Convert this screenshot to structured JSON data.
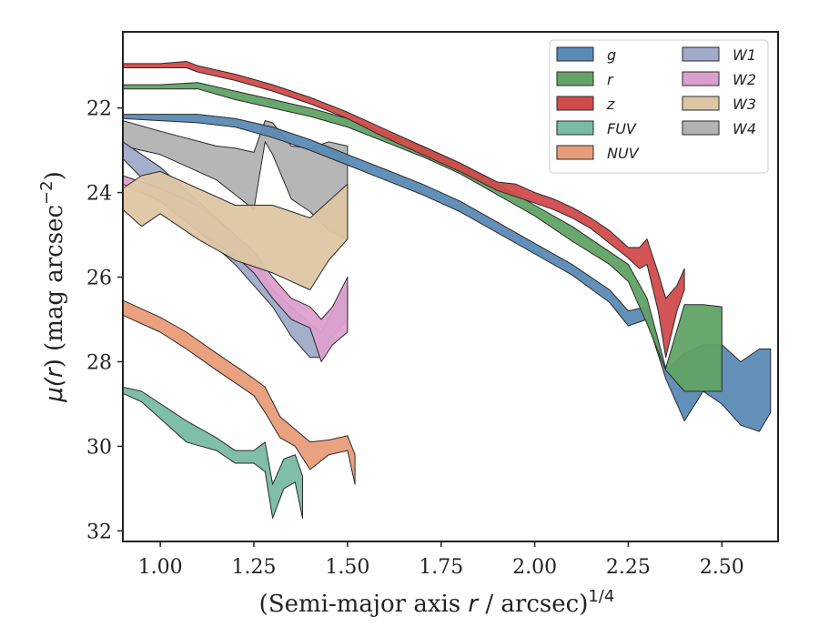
{
  "chart_data": {
    "type": "area",
    "xlabel_main": "(Semi-major axis ",
    "xlabel_var": "r",
    "xlabel_unit": " / arcsec)",
    "xlabel_exp": "1/4",
    "ylabel_main": "μ(",
    "ylabel_var": "r",
    "ylabel_unit": ") (mag arcsec",
    "ylabel_exp": "−2",
    "ylabel_close": ")",
    "xlim": [
      0.9,
      2.65
    ],
    "ylim": [
      32.25,
      20.2
    ],
    "y_inverted": true,
    "xticks": [
      1.0,
      1.25,
      1.5,
      1.75,
      2.0,
      2.25,
      2.5
    ],
    "xtick_labels": [
      "1.00",
      "1.25",
      "1.50",
      "1.75",
      "2.00",
      "2.25",
      "2.50"
    ],
    "yticks": [
      22,
      24,
      26,
      28,
      30,
      32
    ],
    "ytick_labels": [
      "22",
      "24",
      "26",
      "28",
      "30",
      "32"
    ],
    "grid": false,
    "legend_placement": "top-right",
    "series": [
      {
        "name": "W4",
        "color": "#b2b2b2",
        "x": [
          0.9,
          1.0,
          1.15,
          1.2,
          1.25,
          1.28,
          1.3,
          1.35,
          1.4,
          1.45,
          1.5
        ],
        "lo": [
          22.3,
          22.55,
          22.9,
          22.95,
          23.05,
          22.3,
          22.35,
          22.9,
          22.95,
          22.8,
          22.9
        ],
        "hi": [
          22.9,
          23.1,
          23.7,
          24.05,
          24.4,
          22.8,
          23.1,
          24.15,
          24.45,
          24.9,
          25.1
        ]
      },
      {
        "name": "W1",
        "color": "#9fabc9",
        "x": [
          0.9,
          1.0,
          1.1,
          1.2,
          1.25,
          1.3,
          1.35,
          1.4,
          1.43,
          1.46,
          1.5
        ],
        "lo": [
          22.8,
          23.4,
          24.2,
          25.0,
          25.6,
          26.3,
          26.7,
          27.1,
          27.3,
          26.8,
          26.2
        ],
        "hi": [
          23.2,
          24.1,
          24.9,
          25.7,
          26.2,
          26.7,
          27.4,
          27.9,
          27.9,
          27.4,
          27.0
        ]
      },
      {
        "name": "W2",
        "color": "#dba0ce",
        "x": [
          0.9,
          1.0,
          1.1,
          1.2,
          1.25,
          1.3,
          1.35,
          1.4,
          1.43,
          1.46,
          1.5
        ],
        "lo": [
          23.6,
          23.9,
          24.3,
          25.0,
          25.4,
          26.0,
          26.5,
          26.7,
          27.0,
          26.7,
          26.0
        ],
        "hi": [
          23.8,
          24.2,
          24.9,
          25.5,
          25.9,
          26.5,
          27.0,
          27.2,
          28.0,
          27.6,
          27.3
        ]
      },
      {
        "name": "W3",
        "color": "#ddc6a3",
        "x": [
          0.9,
          0.95,
          1.0,
          1.1,
          1.2,
          1.3,
          1.4,
          1.45,
          1.5
        ],
        "lo": [
          23.9,
          23.6,
          23.5,
          23.9,
          24.3,
          24.3,
          24.6,
          24.2,
          23.8
        ],
        "hi": [
          24.4,
          24.8,
          24.5,
          25.1,
          25.6,
          25.9,
          26.3,
          25.6,
          25.1
        ]
      },
      {
        "name": "NUV",
        "color": "#e89c79",
        "x": [
          0.9,
          1.0,
          1.07,
          1.15,
          1.2,
          1.25,
          1.28,
          1.32,
          1.36,
          1.4,
          1.45,
          1.5,
          1.52
        ],
        "lo": [
          26.55,
          26.95,
          27.3,
          27.8,
          28.1,
          28.4,
          28.6,
          29.3,
          29.6,
          29.9,
          29.85,
          29.75,
          30.2
        ],
        "hi": [
          26.9,
          27.3,
          27.7,
          28.2,
          28.5,
          28.8,
          29.2,
          29.8,
          30.0,
          30.55,
          30.2,
          30.1,
          30.9
        ]
      },
      {
        "name": "FUV",
        "color": "#78bba3",
        "x": [
          0.9,
          0.95,
          1.07,
          1.15,
          1.2,
          1.25,
          1.28,
          1.3,
          1.33,
          1.36,
          1.38
        ],
        "lo": [
          28.6,
          28.7,
          29.4,
          29.8,
          30.1,
          30.1,
          29.9,
          30.9,
          30.3,
          30.2,
          30.7
        ],
        "hi": [
          28.75,
          28.95,
          29.9,
          30.1,
          30.4,
          30.4,
          30.6,
          31.7,
          31.0,
          30.85,
          31.7
        ]
      },
      {
        "name": "g",
        "color": "#5b8ab5",
        "x": [
          0.9,
          1.0,
          1.1,
          1.2,
          1.3,
          1.4,
          1.5,
          1.6,
          1.7,
          1.8,
          1.9,
          2.0,
          2.1,
          2.2,
          2.25,
          2.3,
          2.35,
          2.4,
          2.45,
          2.5,
          2.55,
          2.6,
          2.63
        ],
        "lo": [
          22.15,
          22.15,
          22.15,
          22.25,
          22.45,
          22.75,
          23.1,
          23.45,
          23.8,
          24.2,
          24.7,
          25.2,
          25.7,
          26.3,
          26.8,
          26.7,
          28.2,
          27.8,
          27.6,
          27.6,
          28.0,
          27.7,
          27.7
        ],
        "hi": [
          22.25,
          22.3,
          22.35,
          22.45,
          22.7,
          23.0,
          23.35,
          23.7,
          24.05,
          24.45,
          24.95,
          25.45,
          25.95,
          26.6,
          27.15,
          27.0,
          28.4,
          29.4,
          28.7,
          29.0,
          29.5,
          29.65,
          29.2
        ]
      },
      {
        "name": "r",
        "color": "#61a365",
        "x": [
          0.9,
          1.0,
          1.1,
          1.2,
          1.3,
          1.4,
          1.5,
          1.6,
          1.7,
          1.8,
          1.9,
          2.0,
          2.1,
          2.2,
          2.25,
          2.3,
          2.35,
          2.4,
          2.45,
          2.5
        ],
        "lo": [
          21.45,
          21.45,
          21.4,
          21.6,
          21.8,
          22.0,
          22.25,
          22.6,
          22.9,
          23.3,
          23.8,
          24.3,
          24.8,
          25.4,
          25.7,
          26.5,
          28.15,
          26.65,
          26.65,
          26.7
        ],
        "hi": [
          21.55,
          21.55,
          21.55,
          21.8,
          22.0,
          22.2,
          22.45,
          22.8,
          23.15,
          23.55,
          24.05,
          24.55,
          25.15,
          25.7,
          26.1,
          27.1,
          28.2,
          28.7,
          28.7,
          28.7
        ]
      },
      {
        "name": "z",
        "color": "#d04b4b",
        "x": [
          0.9,
          1.0,
          1.07,
          1.1,
          1.2,
          1.3,
          1.4,
          1.5,
          1.6,
          1.7,
          1.8,
          1.9,
          1.95,
          2.0,
          2.05,
          2.1,
          2.15,
          2.2,
          2.25,
          2.28,
          2.3,
          2.33,
          2.35,
          2.38,
          2.4
        ],
        "lo": [
          20.95,
          20.95,
          20.9,
          21.0,
          21.2,
          21.45,
          21.75,
          22.1,
          22.5,
          22.9,
          23.3,
          23.75,
          23.8,
          24.0,
          24.15,
          24.35,
          24.6,
          24.9,
          25.3,
          25.3,
          25.1,
          25.9,
          26.5,
          26.2,
          25.8
        ],
        "hi": [
          21.05,
          21.05,
          21.05,
          21.15,
          21.35,
          21.6,
          21.9,
          22.25,
          22.7,
          23.1,
          23.5,
          23.95,
          24.1,
          24.25,
          24.4,
          24.6,
          24.85,
          25.2,
          25.55,
          25.8,
          25.7,
          26.8,
          27.9,
          26.8,
          26.3
        ]
      }
    ],
    "legend": [
      {
        "name": "g",
        "color": "#5b8ab5"
      },
      {
        "name": "r",
        "color": "#61a365"
      },
      {
        "name": "z",
        "color": "#d04b4b"
      },
      {
        "name": "FUV",
        "color": "#78bba3"
      },
      {
        "name": "NUV",
        "color": "#e89c79"
      },
      {
        "name": "W1",
        "color": "#9fabc9"
      },
      {
        "name": "W2",
        "color": "#dba0ce"
      },
      {
        "name": "W3",
        "color": "#ddc6a3"
      },
      {
        "name": "W4",
        "color": "#b2b2b2"
      }
    ]
  }
}
